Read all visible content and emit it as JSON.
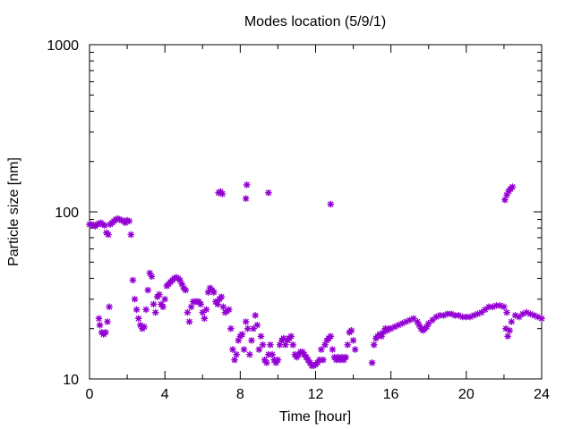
{
  "chart_data": {
    "type": "scatter",
    "title": "Modes location (5/9/1)",
    "xlabel": "Time [hour]",
    "ylabel": "Particle size [nm]",
    "xlim": [
      0,
      24
    ],
    "ylim": [
      10,
      1000
    ],
    "yscale": "log",
    "grid": false,
    "x_ticks": [
      0,
      4,
      8,
      12,
      16,
      20,
      24
    ],
    "x_tick_labels": [
      "0",
      "4",
      "8",
      "12",
      "16",
      "20",
      "24"
    ],
    "y_ticks": [
      10,
      100,
      1000
    ],
    "y_tick_labels": [
      "10",
      "100",
      "1000"
    ],
    "marker_color": "#9400d3",
    "marker": "asterisk",
    "series": [
      {
        "points": [
          [
            0.0,
            84
          ],
          [
            0.1,
            84
          ],
          [
            0.2,
            83
          ],
          [
            0.3,
            82
          ],
          [
            0.4,
            84
          ],
          [
            0.5,
            85
          ],
          [
            0.6,
            86
          ],
          [
            0.7,
            84
          ],
          [
            0.8,
            83
          ],
          [
            0.9,
            75
          ],
          [
            1.0,
            73
          ],
          [
            1.1,
            84
          ],
          [
            1.2,
            86
          ],
          [
            1.3,
            88
          ],
          [
            1.4,
            90
          ],
          [
            1.5,
            91
          ],
          [
            1.6,
            90
          ],
          [
            1.7,
            89
          ],
          [
            1.8,
            88
          ],
          [
            1.9,
            86
          ],
          [
            2.0,
            89
          ],
          [
            2.1,
            88
          ],
          [
            2.2,
            73
          ],
          [
            0.5,
            23
          ],
          [
            0.55,
            21
          ],
          [
            0.65,
            19
          ],
          [
            0.75,
            18.5
          ],
          [
            0.85,
            19
          ],
          [
            0.95,
            22
          ],
          [
            1.05,
            27
          ],
          [
            2.3,
            39
          ],
          [
            2.4,
            30
          ],
          [
            2.5,
            26
          ],
          [
            2.6,
            23
          ],
          [
            2.7,
            21
          ],
          [
            2.8,
            20
          ],
          [
            2.9,
            20.5
          ],
          [
            3.0,
            26
          ],
          [
            3.1,
            34
          ],
          [
            3.2,
            43
          ],
          [
            3.3,
            41
          ],
          [
            3.4,
            28
          ],
          [
            3.5,
            25
          ],
          [
            3.6,
            31
          ],
          [
            3.7,
            32
          ],
          [
            3.8,
            28
          ],
          [
            3.9,
            27
          ],
          [
            4.0,
            30
          ],
          [
            4.1,
            36
          ],
          [
            4.2,
            37
          ],
          [
            4.3,
            38
          ],
          [
            4.4,
            39
          ],
          [
            4.5,
            40
          ],
          [
            4.6,
            40.5
          ],
          [
            4.7,
            40
          ],
          [
            4.8,
            39
          ],
          [
            4.9,
            37
          ],
          [
            5.0,
            35
          ],
          [
            5.1,
            34
          ],
          [
            5.2,
            25
          ],
          [
            5.3,
            22
          ],
          [
            5.4,
            27
          ],
          [
            5.5,
            29
          ],
          [
            5.6,
            29
          ],
          [
            5.7,
            29
          ],
          [
            5.8,
            29
          ],
          [
            5.9,
            28
          ],
          [
            6.0,
            25
          ],
          [
            6.1,
            23
          ],
          [
            6.2,
            26
          ],
          [
            6.3,
            33
          ],
          [
            6.4,
            35
          ],
          [
            6.5,
            34
          ],
          [
            6.6,
            33
          ],
          [
            6.7,
            29
          ],
          [
            6.8,
            28
          ],
          [
            6.9,
            30
          ],
          [
            7.0,
            31
          ],
          [
            7.1,
            27
          ],
          [
            7.2,
            25
          ],
          [
            7.3,
            25.5
          ],
          [
            7.4,
            26
          ],
          [
            7.5,
            20
          ],
          [
            7.6,
            15
          ],
          [
            7.7,
            13
          ],
          [
            7.8,
            14
          ],
          [
            7.9,
            17
          ],
          [
            8.0,
            18
          ],
          [
            8.1,
            18.5
          ],
          [
            8.2,
            15
          ],
          [
            8.3,
            22
          ],
          [
            8.4,
            20
          ],
          [
            8.5,
            14
          ],
          [
            8.6,
            17
          ],
          [
            8.7,
            20
          ],
          [
            8.8,
            24
          ],
          [
            8.9,
            21
          ],
          [
            9.0,
            15
          ],
          [
            9.1,
            18
          ],
          [
            9.2,
            16
          ],
          [
            9.3,
            13
          ],
          [
            9.4,
            12.5
          ],
          [
            9.5,
            14
          ],
          [
            9.6,
            16
          ],
          [
            9.7,
            14
          ],
          [
            9.8,
            13
          ],
          [
            9.9,
            12.5
          ],
          [
            10.0,
            13
          ],
          [
            10.1,
            16
          ],
          [
            10.2,
            17
          ],
          [
            10.3,
            17.5
          ],
          [
            10.4,
            16
          ],
          [
            10.5,
            17
          ],
          [
            10.6,
            17.5
          ],
          [
            10.7,
            18
          ],
          [
            10.8,
            16
          ],
          [
            10.9,
            14
          ],
          [
            11.0,
            13.5
          ],
          [
            11.1,
            14
          ],
          [
            11.2,
            14.5
          ],
          [
            11.3,
            14.5
          ],
          [
            11.4,
            14
          ],
          [
            11.5,
            13.5
          ],
          [
            11.6,
            13
          ],
          [
            11.7,
            12.5
          ],
          [
            11.8,
            12
          ],
          [
            11.9,
            12
          ],
          [
            12.0,
            12.2
          ],
          [
            12.1,
            12.5
          ],
          [
            12.2,
            13
          ],
          [
            12.3,
            15
          ],
          [
            12.4,
            13
          ],
          [
            12.5,
            16
          ],
          [
            12.6,
            17
          ],
          [
            12.7,
            17.5
          ],
          [
            12.8,
            18
          ],
          [
            12.9,
            15
          ],
          [
            13.0,
            13.5
          ],
          [
            13.1,
            13
          ],
          [
            13.2,
            13.5
          ],
          [
            13.3,
            13
          ],
          [
            13.4,
            13.5
          ],
          [
            13.5,
            13
          ],
          [
            13.6,
            13.5
          ],
          [
            13.7,
            16
          ],
          [
            13.8,
            19
          ],
          [
            13.9,
            19.5
          ],
          [
            14.0,
            17
          ],
          [
            14.1,
            15
          ],
          [
            15.0,
            12.5
          ],
          [
            15.1,
            16
          ],
          [
            15.2,
            17.5
          ],
          [
            15.3,
            18
          ],
          [
            15.4,
            18.5
          ],
          [
            15.5,
            18
          ],
          [
            15.6,
            19
          ],
          [
            15.7,
            20
          ],
          [
            15.8,
            19.5
          ],
          [
            15.9,
            20
          ],
          [
            16.0,
            20
          ],
          [
            16.2,
            20.5
          ],
          [
            16.4,
            21
          ],
          [
            16.6,
            21.5
          ],
          [
            16.8,
            22
          ],
          [
            17.0,
            22.5
          ],
          [
            17.2,
            23
          ],
          [
            17.4,
            22
          ],
          [
            17.5,
            21
          ],
          [
            17.6,
            20
          ],
          [
            17.7,
            19.5
          ],
          [
            17.8,
            20
          ],
          [
            17.9,
            20.5
          ],
          [
            18.0,
            21.5
          ],
          [
            18.2,
            22.5
          ],
          [
            18.4,
            23.5
          ],
          [
            18.6,
            24
          ],
          [
            18.8,
            24
          ],
          [
            19.0,
            24.5
          ],
          [
            19.2,
            24.5
          ],
          [
            19.4,
            24
          ],
          [
            19.6,
            24
          ],
          [
            19.8,
            23.5
          ],
          [
            20.0,
            23.5
          ],
          [
            20.2,
            23.5
          ],
          [
            20.4,
            24
          ],
          [
            20.6,
            24.5
          ],
          [
            20.8,
            25
          ],
          [
            21.0,
            26
          ],
          [
            21.2,
            27
          ],
          [
            21.4,
            27
          ],
          [
            21.6,
            27.5
          ],
          [
            21.8,
            27.5
          ],
          [
            22.0,
            27
          ],
          [
            22.1,
            20
          ],
          [
            22.15,
            25
          ],
          [
            22.2,
            18
          ],
          [
            22.3,
            19.5
          ],
          [
            22.4,
            22
          ],
          [
            22.6,
            24
          ],
          [
            22.8,
            23.5
          ],
          [
            23.0,
            24.5
          ],
          [
            23.2,
            25
          ],
          [
            23.4,
            24.5
          ],
          [
            23.6,
            24
          ],
          [
            23.8,
            23.5
          ],
          [
            24.0,
            23
          ],
          [
            6.85,
            130
          ],
          [
            6.95,
            132
          ],
          [
            7.05,
            128
          ],
          [
            8.3,
            120
          ],
          [
            8.35,
            145
          ],
          [
            9.5,
            130
          ],
          [
            12.8,
            111
          ],
          [
            22.05,
            118
          ],
          [
            22.15,
            126
          ],
          [
            22.25,
            133
          ],
          [
            22.35,
            137
          ],
          [
            22.45,
            141
          ]
        ]
      }
    ]
  }
}
